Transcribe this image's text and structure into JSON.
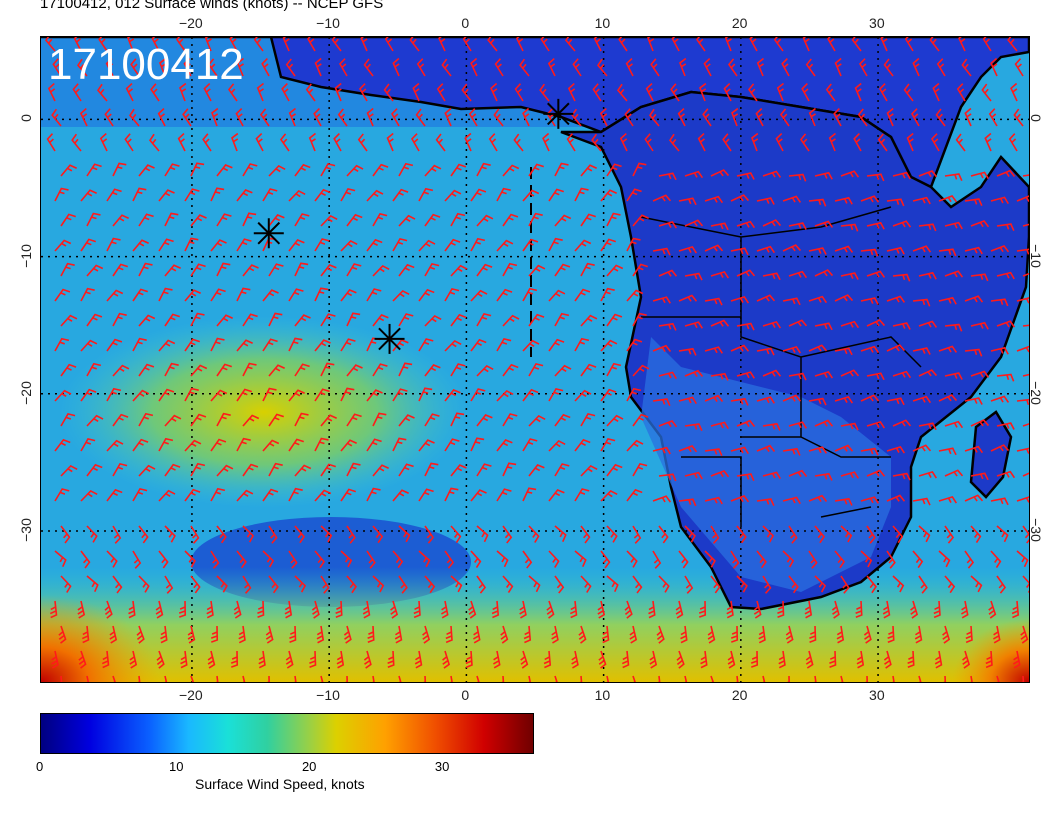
{
  "title": "17100412, 012 Surface winds (knots) -- NCEP GFS",
  "timestamp_label": "17100412",
  "x_ticks": [
    "−20",
    "−10",
    "0",
    "10",
    "20",
    "30"
  ],
  "x_tick_values": [
    -20,
    -10,
    0,
    10,
    20,
    30
  ],
  "y_ticks": [
    "0",
    "−10",
    "−20",
    "−30"
  ],
  "y_tick_values": [
    0,
    -10,
    -20,
    -30
  ],
  "colorbar": {
    "label": "Surface Wind Speed, knots",
    "ticks": [
      "0",
      "10",
      "20",
      "30"
    ],
    "tick_values": [
      0,
      10,
      20,
      30
    ],
    "range": [
      0,
      37
    ],
    "colormap": "jet"
  },
  "map": {
    "lon_range": [
      -31,
      41
    ],
    "lat_range": [
      -41,
      6
    ],
    "grid_lines": true,
    "markers": [
      {
        "symbol": "asterisk",
        "lon": 6.7,
        "lat": 0.4
      },
      {
        "symbol": "asterisk",
        "lon": -14.4,
        "lat": -8.3
      },
      {
        "symbol": "asterisk",
        "lon": -5.6,
        "lat": -16.0
      }
    ],
    "colors": {
      "barbs": "#ff1a1a",
      "coast": "#000000",
      "ocean_calm": "#1a3cd0",
      "high_wind": "#e0d000"
    }
  }
}
